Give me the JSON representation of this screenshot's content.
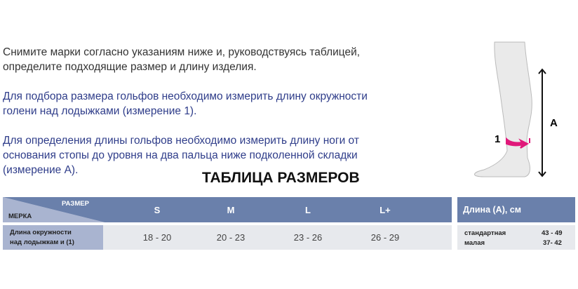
{
  "intro": {
    "line1": "Снимите марки согласно указаниям ниже и, руководствуясь таблицей,",
    "line2": "определите подходящие размер и длину изделия."
  },
  "size_note": {
    "line1": "Для подбора размера гольфов необходимо измерить длину окружности",
    "line2": "голени над лодыжками (измерение 1)."
  },
  "length_note": {
    "line1": "Для определения длины гольфов необходимо измерить длину ноги от",
    "line2": "основания стопы до уровня на два пальца ниже подколенной складки",
    "line3": "(измерение А)."
  },
  "table": {
    "title": "ТАБЛИЦА РАЗМЕРОВ",
    "corner_top": "РАЗМЕР",
    "corner_bottom": "МЕРКА",
    "sizes": [
      "S",
      "M",
      "L",
      "L+"
    ],
    "row_label": {
      "line1": "Длина окружности",
      "line2": "над лодыжкам и (1)"
    },
    "values": [
      "18 - 20",
      "20 - 23",
      "23 - 26",
      "26 - 29"
    ],
    "length_header": "Длина (А), см",
    "lengths": [
      {
        "name": "стандартная",
        "value": "43 - 49"
      },
      {
        "name": "малая",
        "value": "37- 42"
      }
    ]
  },
  "diagram": {
    "label_1": "1",
    "label_a": "A"
  },
  "colors": {
    "header": "#6a80ab",
    "body": "#e7e9ed",
    "accent": "#e0187a",
    "text_blue": "#2f3d8a"
  }
}
